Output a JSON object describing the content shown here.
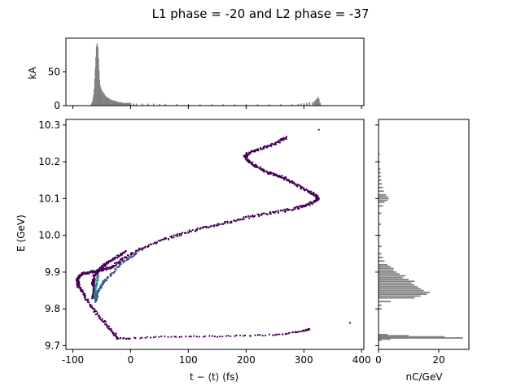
{
  "chart_data": {
    "type": "scatter",
    "title": "L1 phase = -20 and L2 phase = -37",
    "main": {
      "xlabel": "t − ⟨t⟩ (fs)",
      "ylabel": "E (GeV)",
      "xlim": [
        -112,
        404
      ],
      "ylim": [
        9.69,
        10.315
      ],
      "xticks": [
        -100,
        0,
        100,
        200,
        300,
        400
      ],
      "yticks": [
        9.7,
        9.8,
        9.9,
        10.0,
        10.1,
        10.2,
        10.3
      ],
      "curve_path": [
        [
          -22,
          9.72
        ],
        [
          -35,
          9.745
        ],
        [
          -55,
          9.78
        ],
        [
          -75,
          9.825
        ],
        [
          -90,
          9.86
        ],
        [
          -92,
          9.88
        ],
        [
          -85,
          9.895
        ],
        [
          -70,
          9.9
        ],
        [
          -50,
          9.905
        ],
        [
          -30,
          9.915
        ],
        [
          -10,
          9.94
        ],
        [
          20,
          9.965
        ],
        [
          60,
          9.99
        ],
        [
          100,
          10.01
        ],
        [
          140,
          10.025
        ],
        [
          180,
          10.04
        ],
        [
          220,
          10.055
        ],
        [
          260,
          10.065
        ],
        [
          290,
          10.075
        ],
        [
          310,
          10.085
        ],
        [
          325,
          10.1
        ],
        [
          320,
          10.11
        ],
        [
          300,
          10.125
        ],
        [
          280,
          10.145
        ],
        [
          260,
          10.16
        ],
        [
          240,
          10.17
        ],
        [
          220,
          10.185
        ],
        [
          205,
          10.2
        ],
        [
          198,
          10.215
        ],
        [
          205,
          10.225
        ],
        [
          225,
          10.235
        ],
        [
          250,
          10.25
        ],
        [
          270,
          10.265
        ]
      ],
      "inner_arc": [
        [
          -65,
          9.83
        ],
        [
          -62,
          9.85
        ],
        [
          -65,
          9.87
        ],
        [
          -62,
          9.89
        ],
        [
          -55,
          9.905
        ],
        [
          -45,
          9.92
        ],
        [
          -30,
          9.935
        ],
        [
          -10,
          9.955
        ]
      ],
      "inner_arc2": [
        [
          -60,
          9.82
        ],
        [
          -58,
          9.84
        ],
        [
          -52,
          9.86
        ],
        [
          -45,
          9.875
        ],
        [
          -30,
          9.9
        ],
        [
          -10,
          9.93
        ],
        [
          10,
          9.95
        ]
      ],
      "tail_path": [
        [
          -22,
          9.72
        ],
        [
          0,
          9.72
        ],
        [
          50,
          9.724
        ],
        [
          100,
          9.725
        ],
        [
          150,
          9.725
        ],
        [
          200,
          9.727
        ],
        [
          250,
          9.73
        ],
        [
          280,
          9.735
        ],
        [
          300,
          9.74
        ],
        [
          310,
          9.745
        ]
      ],
      "outliers": [
        [
          326,
          10.287
        ],
        [
          380,
          9.762
        ],
        [
          270,
          10.268
        ]
      ],
      "colors": {
        "base": "#440154",
        "dense": "#21908d",
        "mid": "#3b528b"
      }
    },
    "top": {
      "ylabel": "kA",
      "ylim": [
        0,
        100
      ],
      "yticks": [
        0,
        50
      ],
      "color": "#808080",
      "bins": [
        [
          -68,
          2
        ],
        [
          -67,
          4
        ],
        [
          -66,
          6
        ],
        [
          -65,
          10
        ],
        [
          -64,
          16
        ],
        [
          -63,
          25
        ],
        [
          -62,
          40
        ],
        [
          -61,
          55
        ],
        [
          -60,
          72
        ],
        [
          -59,
          88
        ],
        [
          -58,
          92
        ],
        [
          -57,
          86
        ],
        [
          -56,
          70
        ],
        [
          -55,
          52
        ],
        [
          -54,
          38
        ],
        [
          -53,
          30
        ],
        [
          -52,
          26
        ],
        [
          -51,
          24
        ],
        [
          -50,
          22
        ],
        [
          -48,
          20
        ],
        [
          -46,
          18
        ],
        [
          -44,
          15
        ],
        [
          -42,
          13
        ],
        [
          -40,
          12
        ],
        [
          -38,
          11
        ],
        [
          -36,
          10
        ],
        [
          -34,
          9
        ],
        [
          -32,
          8
        ],
        [
          -30,
          8
        ],
        [
          -28,
          7
        ],
        [
          -26,
          7
        ],
        [
          -24,
          6
        ],
        [
          -22,
          6
        ],
        [
          -20,
          5
        ],
        [
          -18,
          5
        ],
        [
          -16,
          5
        ],
        [
          -14,
          4
        ],
        [
          -12,
          4
        ],
        [
          -10,
          4
        ],
        [
          -8,
          4
        ],
        [
          -6,
          4
        ],
        [
          -4,
          4
        ],
        [
          -2,
          4
        ],
        [
          0,
          4
        ],
        [
          5,
          3
        ],
        [
          10,
          3
        ],
        [
          20,
          3
        ],
        [
          30,
          3
        ],
        [
          40,
          3
        ],
        [
          50,
          2.5
        ],
        [
          60,
          2.5
        ],
        [
          80,
          2.5
        ],
        [
          100,
          2.5
        ],
        [
          120,
          2
        ],
        [
          140,
          2
        ],
        [
          160,
          2
        ],
        [
          180,
          2
        ],
        [
          200,
          2
        ],
        [
          220,
          2
        ],
        [
          240,
          2
        ],
        [
          260,
          2
        ],
        [
          280,
          2
        ],
        [
          290,
          2.5
        ],
        [
          295,
          3
        ],
        [
          300,
          3.5
        ],
        [
          305,
          4
        ],
        [
          310,
          5
        ],
        [
          315,
          5
        ],
        [
          318,
          6
        ],
        [
          320,
          8
        ],
        [
          322,
          10
        ],
        [
          324,
          13
        ],
        [
          326,
          10
        ],
        [
          328,
          4
        ]
      ]
    },
    "right": {
      "xlabel": "nC/GeV",
      "xlim": [
        0,
        30
      ],
      "xticks": [
        0,
        20
      ],
      "color": "#808080",
      "bins": [
        [
          9.715,
          1
        ],
        [
          9.718,
          4
        ],
        [
          9.721,
          28
        ],
        [
          9.724,
          22
        ],
        [
          9.727,
          10
        ],
        [
          9.73,
          3
        ],
        [
          9.8,
          1
        ],
        [
          9.81,
          1
        ],
        [
          9.82,
          4
        ],
        [
          9.83,
          12
        ],
        [
          9.835,
          14
        ],
        [
          9.84,
          16
        ],
        [
          9.845,
          17
        ],
        [
          9.85,
          15
        ],
        [
          9.855,
          14
        ],
        [
          9.86,
          13
        ],
        [
          9.865,
          12
        ],
        [
          9.87,
          11
        ],
        [
          9.875,
          12
        ],
        [
          9.88,
          10
        ],
        [
          9.885,
          8
        ],
        [
          9.89,
          9
        ],
        [
          9.895,
          7
        ],
        [
          9.9,
          6
        ],
        [
          9.905,
          5
        ],
        [
          9.91,
          5
        ],
        [
          9.915,
          4
        ],
        [
          9.92,
          3
        ],
        [
          9.93,
          2
        ],
        [
          9.94,
          1.5
        ],
        [
          9.95,
          1
        ],
        [
          9.97,
          1
        ],
        [
          10.0,
          0.8
        ],
        [
          10.03,
          0.8
        ],
        [
          10.06,
          1
        ],
        [
          10.08,
          1.5
        ],
        [
          10.09,
          2
        ],
        [
          10.095,
          3
        ],
        [
          10.1,
          3.5
        ],
        [
          10.105,
          3
        ],
        [
          10.11,
          2.5
        ],
        [
          10.12,
          1.8
        ],
        [
          10.13,
          1.5
        ],
        [
          10.14,
          1.2
        ],
        [
          10.15,
          1
        ],
        [
          10.16,
          0.8
        ],
        [
          10.17,
          0.7
        ],
        [
          10.18,
          0.6
        ],
        [
          10.2,
          0.5
        ],
        [
          10.22,
          0.4
        ]
      ]
    }
  }
}
